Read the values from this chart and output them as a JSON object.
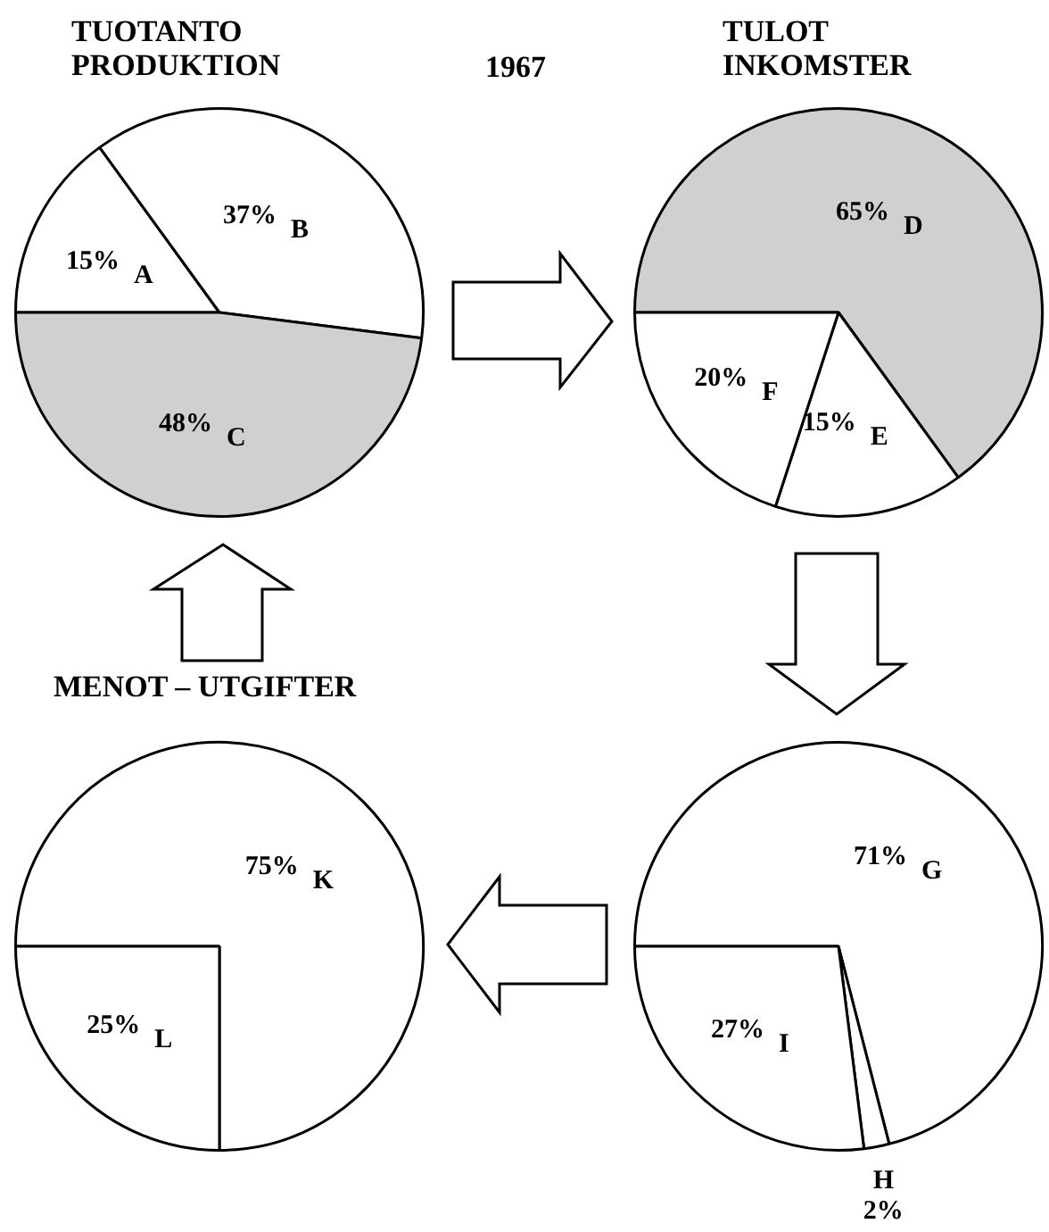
{
  "chart_data": [
    {
      "type": "pie",
      "title": "TUOTANTO\nPRODUKTION",
      "annotations": [
        "1967"
      ],
      "categories": [
        "A",
        "B",
        "C"
      ],
      "values": [
        15,
        37,
        48
      ],
      "colors": [
        "#ffffff",
        "#ffffff",
        "#d0d0d0"
      ],
      "value_labels": [
        "15%",
        "37%",
        "48%"
      ]
    },
    {
      "type": "pie",
      "title": "TULOT\nINKOMSTER",
      "categories": [
        "D",
        "E",
        "F"
      ],
      "values": [
        65,
        15,
        20
      ],
      "colors": [
        "#d0d0d0",
        "#ffffff",
        "#ffffff"
      ],
      "value_labels": [
        "65%",
        "15%",
        "20%"
      ]
    },
    {
      "type": "pie",
      "title": "MENOT – UTGIFTER",
      "categories": [
        "K",
        "L"
      ],
      "values": [
        75,
        25
      ],
      "colors": [
        "#ffffff",
        "#ffffff"
      ],
      "value_labels": [
        "75%",
        "25%"
      ]
    },
    {
      "type": "pie",
      "categories": [
        "G",
        "H",
        "I"
      ],
      "values": [
        71,
        2,
        27
      ],
      "colors": [
        "#ffffff",
        "#ffffff",
        "#ffffff"
      ],
      "value_labels": [
        "71%",
        "2%",
        "27%"
      ]
    }
  ]
}
